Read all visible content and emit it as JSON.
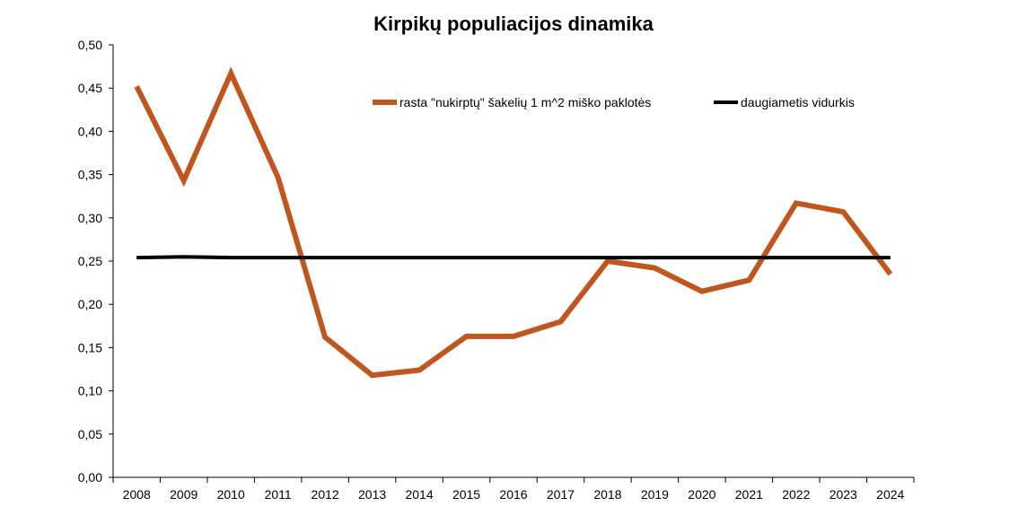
{
  "chart_data": {
    "type": "line",
    "title": "Kirpikų populiacijos dinamika",
    "categories": [
      "2008",
      "2009",
      "2010",
      "2011",
      "2012",
      "2013",
      "2014",
      "2015",
      "2016",
      "2017",
      "2018",
      "2019",
      "2020",
      "2021",
      "2022",
      "2023",
      "2024"
    ],
    "ylim": [
      0,
      0.5
    ],
    "yticks": [
      "0,00",
      "0,05",
      "0,10",
      "0,15",
      "0,20",
      "0,25",
      "0,30",
      "0,35",
      "0,40",
      "0,45",
      "0,50"
    ],
    "grid": false,
    "legend_position": "top-right",
    "series": [
      {
        "name": "rasta \"nukirptų\" šakelių 1 m^2 miško paklotės",
        "color": "#C0561E",
        "values": [
          0.452,
          0.343,
          0.467,
          0.347,
          0.162,
          0.118,
          0.124,
          0.163,
          0.163,
          0.18,
          0.25,
          0.242,
          0.215,
          0.228,
          0.317,
          0.307,
          0.235
        ]
      },
      {
        "name": "daugiametis vidurkis",
        "color": "#000000",
        "values": [
          0.254,
          0.255,
          0.254,
          0.254,
          0.254,
          0.254,
          0.254,
          0.254,
          0.254,
          0.254,
          0.254,
          0.254,
          0.254,
          0.254,
          0.254,
          0.254,
          0.254
        ]
      }
    ]
  }
}
